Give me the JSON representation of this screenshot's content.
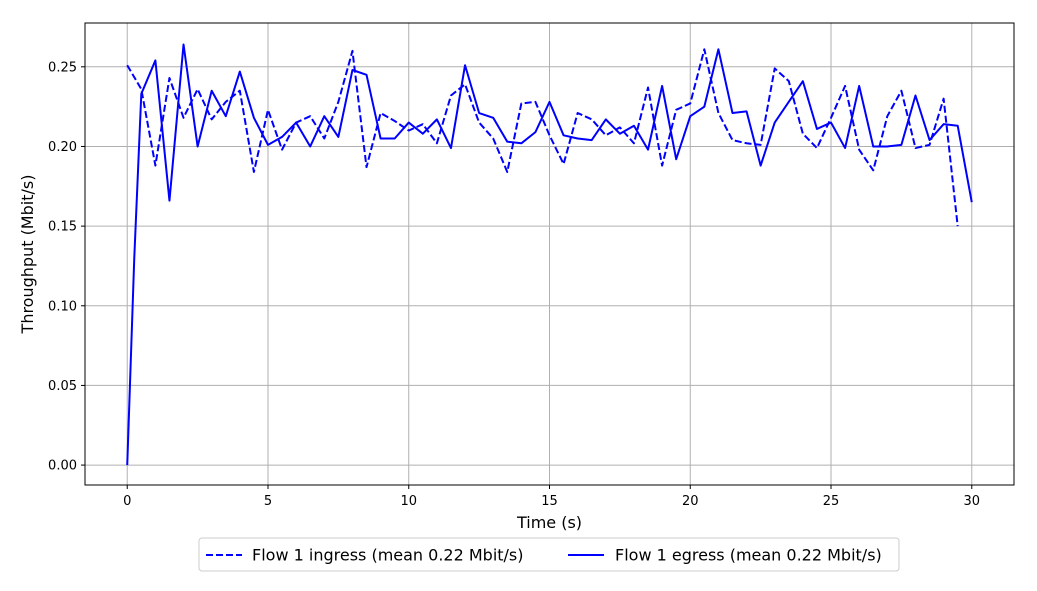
{
  "chart_data": {
    "type": "line",
    "xlabel": "Time (s)",
    "ylabel": "Throughput (Mbit/s)",
    "xlim": [
      -1.5,
      31.5
    ],
    "ylim": [
      -0.0125,
      0.2775
    ],
    "xticks": [
      0,
      5,
      10,
      15,
      20,
      25,
      30
    ],
    "yticks": [
      0.0,
      0.05,
      0.1,
      0.15,
      0.2,
      0.25
    ],
    "ytick_labels": [
      "0.00",
      "0.05",
      "0.10",
      "0.15",
      "0.20",
      "0.25"
    ],
    "grid": true,
    "legend_position": "bottom-center-outside",
    "series": [
      {
        "name": "Flow 1 ingress (mean 0.22 Mbit/s)",
        "style": "dashed",
        "color": "#0000ff",
        "x": [
          0,
          0.5,
          1,
          1.5,
          2,
          2.5,
          3,
          3.5,
          4,
          4.5,
          5,
          5.5,
          6,
          6.5,
          7,
          7.5,
          8,
          8.5,
          9,
          9.5,
          10,
          10.5,
          11,
          11.5,
          12,
          12.5,
          13,
          13.5,
          14,
          14.5,
          15,
          15.5,
          16,
          16.5,
          17,
          17.5,
          18,
          18.5,
          19,
          19.5,
          20,
          20.5,
          21,
          21.5,
          22,
          22.5,
          23,
          23.5,
          24,
          24.5,
          25,
          25.5,
          26,
          26.5,
          27,
          27.5,
          28,
          28.5,
          29,
          29.5
        ],
        "y": [
          0.251,
          0.236,
          0.188,
          0.243,
          0.218,
          0.236,
          0.217,
          0.228,
          0.235,
          0.184,
          0.223,
          0.198,
          0.215,
          0.219,
          0.205,
          0.228,
          0.26,
          0.187,
          0.221,
          0.216,
          0.21,
          0.214,
          0.202,
          0.232,
          0.239,
          0.215,
          0.205,
          0.184,
          0.227,
          0.228,
          0.207,
          0.189,
          0.221,
          0.217,
          0.207,
          0.212,
          0.202,
          0.237,
          0.188,
          0.223,
          0.227,
          0.261,
          0.221,
          0.204,
          0.202,
          0.201,
          0.249,
          0.241,
          0.208,
          0.199,
          0.218,
          0.238,
          0.198,
          0.185,
          0.219,
          0.235,
          0.199,
          0.201,
          0.23,
          0.15
        ]
      },
      {
        "name": "Flow 1 egress (mean 0.22 Mbit/s)",
        "style": "solid",
        "color": "#0000ff",
        "x": [
          0,
          0.25,
          0.5,
          1,
          1.5,
          2,
          2.5,
          3,
          3.5,
          4,
          4.5,
          5,
          5.5,
          6,
          6.5,
          7,
          7.5,
          8,
          8.5,
          9,
          9.5,
          10,
          10.5,
          11,
          11.5,
          12,
          12.5,
          13,
          13.5,
          14,
          14.5,
          15,
          15.5,
          16,
          16.5,
          17,
          17.5,
          18,
          18.5,
          19,
          19.5,
          20,
          20.5,
          21,
          21.5,
          22,
          22.5,
          23,
          23.5,
          24,
          24.5,
          25,
          25.5,
          26,
          26.5,
          27,
          27.5,
          28,
          28.5,
          29,
          29.5,
          30
        ],
        "y": [
          0.0,
          0.13,
          0.233,
          0.254,
          0.166,
          0.264,
          0.2,
          0.235,
          0.219,
          0.247,
          0.218,
          0.201,
          0.206,
          0.215,
          0.2,
          0.219,
          0.206,
          0.248,
          0.245,
          0.205,
          0.205,
          0.215,
          0.208,
          0.217,
          0.199,
          0.251,
          0.221,
          0.218,
          0.203,
          0.202,
          0.209,
          0.228,
          0.207,
          0.205,
          0.204,
          0.217,
          0.208,
          0.213,
          0.198,
          0.238,
          0.192,
          0.219,
          0.225,
          0.261,
          0.221,
          0.222,
          0.188,
          0.215,
          0.228,
          0.241,
          0.211,
          0.215,
          0.199,
          0.238,
          0.2,
          0.2,
          0.201,
          0.232,
          0.204,
          0.214,
          0.213,
          0.165
        ]
      }
    ]
  }
}
